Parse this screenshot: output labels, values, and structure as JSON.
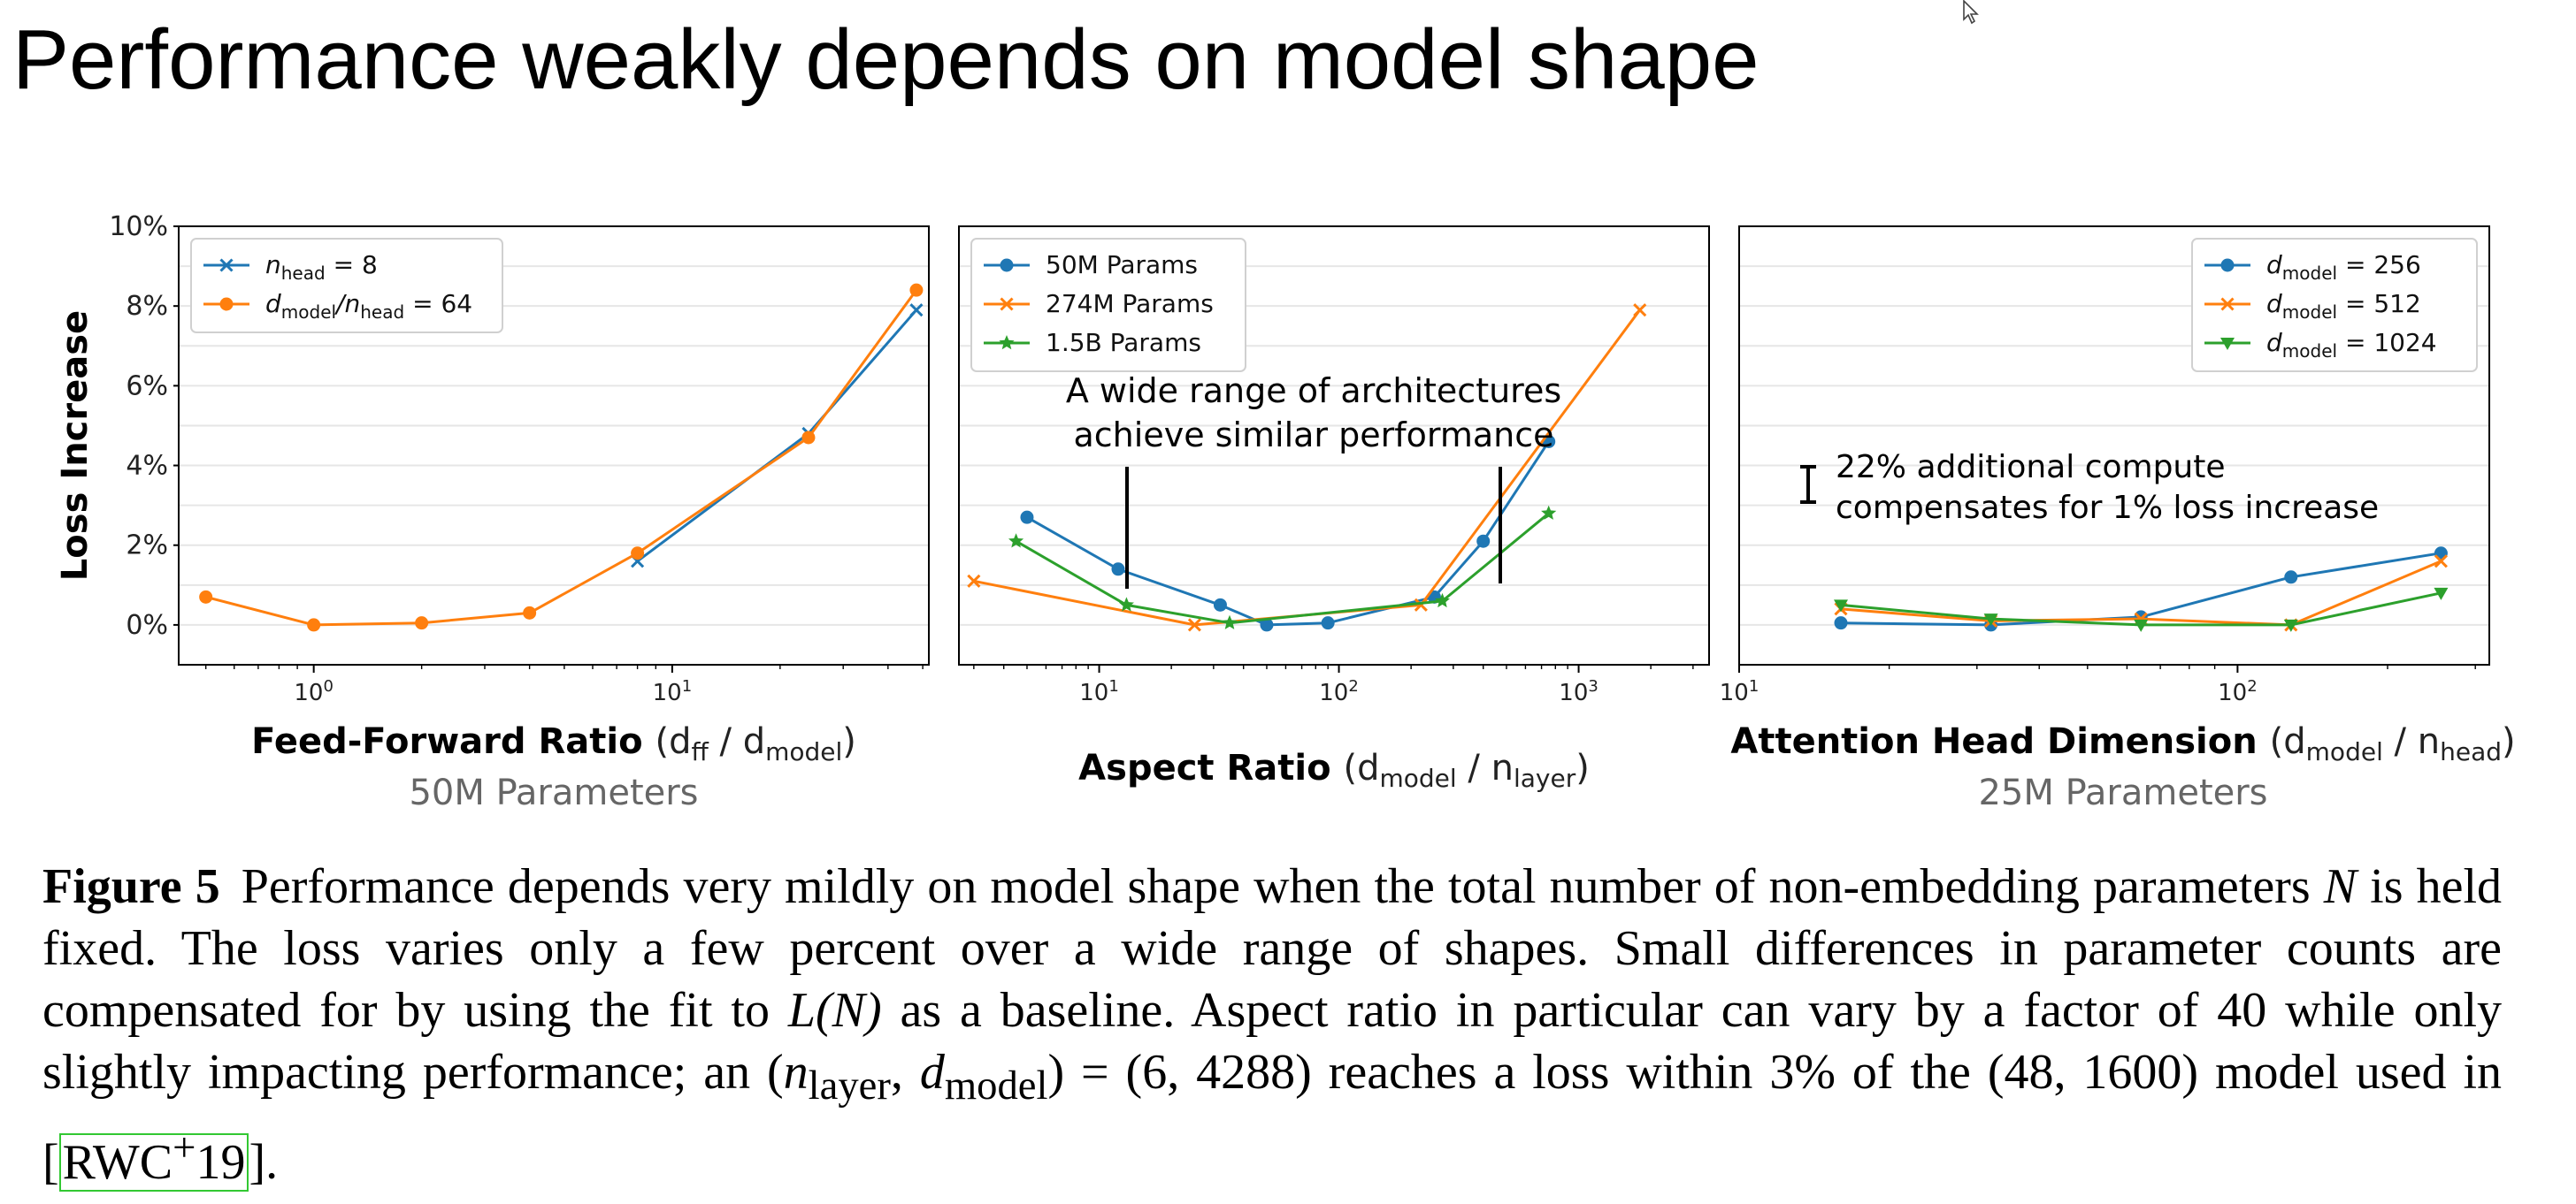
{
  "slide": {
    "title": "Performance weakly depends on model shape"
  },
  "colors": {
    "blue": "#1f77b4",
    "orange": "#ff7f0e",
    "green": "#2ca02c",
    "grid": "#e6e6e6",
    "axis_label_gray": "#666666"
  },
  "icons": {
    "cursor": "mouse-pointer-icon"
  },
  "chart_data": [
    {
      "type": "line",
      "xscale": "log",
      "xlim": [
        0.42,
        52
      ],
      "ylim": [
        -1,
        10
      ],
      "yticks": [
        0,
        2,
        4,
        6,
        8,
        10
      ],
      "ytick_labels": [
        "0%",
        "2%",
        "4%",
        "6%",
        "8%",
        "10%"
      ],
      "xticks": [
        1,
        10
      ],
      "xtick_base": "10",
      "xtick_exps": [
        "0",
        "1"
      ],
      "ylabel": "Loss Increase",
      "xlabel_bold": "Feed-Forward Ratio",
      "xlabel_plain": "(d",
      "xlabel_sub1": "ff",
      "xlabel_mid": " / d",
      "xlabel_sub2": "model",
      "xlabel_end": ")",
      "subtitle": "50M Parameters",
      "legend_position": "upper-left",
      "grid": "horizontal",
      "series": [
        {
          "name_base": "n",
          "name_sub": "head",
          "name_rest": " = 8",
          "color": "#1f77b4",
          "marker": "x",
          "x": [
            8,
            24,
            48
          ],
          "y": [
            1.6,
            4.8,
            7.9
          ]
        },
        {
          "name_base": "d",
          "name_sub": "model",
          "name_mid": "/n",
          "name_sub2": "head",
          "name_rest": " = 64",
          "color": "#ff7f0e",
          "marker": "o",
          "x": [
            0.5,
            1,
            2,
            4,
            8,
            24,
            48
          ],
          "y": [
            0.7,
            0.0,
            0.05,
            0.3,
            1.8,
            4.7,
            8.4
          ]
        }
      ]
    },
    {
      "type": "line",
      "xscale": "log",
      "xlim": [
        2.6,
        3500
      ],
      "ylim": [
        -1,
        10
      ],
      "yticks": [
        0,
        2,
        4,
        6,
        8,
        10
      ],
      "xticks": [
        10,
        100,
        1000
      ],
      "xtick_base": "10",
      "xtick_exps": [
        "1",
        "2",
        "3"
      ],
      "xlabel_bold": "Aspect Ratio",
      "xlabel_plain": "(d",
      "xlabel_sub1": "model",
      "xlabel_mid": " / n",
      "xlabel_sub2": "layer",
      "xlabel_end": ")",
      "annotation": [
        "A wide range of architectures",
        "achieve similar performance"
      ],
      "legend_position": "upper-left",
      "grid": "horizontal",
      "series": [
        {
          "name": "50M Params",
          "color": "#1f77b4",
          "marker": "o",
          "x": [
            5,
            12,
            32,
            50,
            90,
            250,
            400,
            750
          ],
          "y": [
            2.7,
            1.4,
            0.5,
            0.0,
            0.05,
            0.7,
            2.1,
            4.6
          ]
        },
        {
          "name": "274M Params",
          "color": "#ff7f0e",
          "marker": "x",
          "x": [
            3,
            25,
            220,
            1800
          ],
          "y": [
            1.1,
            0.0,
            0.5,
            7.9
          ]
        },
        {
          "name": "1.5B Params",
          "color": "#2ca02c",
          "marker": "*",
          "x": [
            4.5,
            13,
            35,
            270,
            750
          ],
          "y": [
            2.1,
            0.5,
            0.05,
            0.6,
            2.8
          ]
        }
      ]
    },
    {
      "type": "line",
      "xscale": "log",
      "xlim": [
        10,
        320
      ],
      "ylim": [
        -1,
        10
      ],
      "yticks": [
        0,
        2,
        4,
        6,
        8,
        10
      ],
      "xticks": [
        10,
        100
      ],
      "xtick_base": "10",
      "xtick_exps": [
        "1",
        "2"
      ],
      "xlabel_bold": "Attention Head Dimension",
      "xlabel_plain": "(d",
      "xlabel_sub1": "model",
      "xlabel_mid": " / n",
      "xlabel_sub2": "head",
      "xlabel_end": ")",
      "subtitle": "25M Parameters",
      "annotation": [
        "22% additional compute",
        "compensates for 1% loss increase"
      ],
      "legend_position": "upper-right",
      "grid": "horizontal",
      "series": [
        {
          "name_base": "d",
          "name_sub": "model",
          "name_rest": " = 256",
          "color": "#1f77b4",
          "marker": "o",
          "x": [
            16,
            32,
            64,
            128,
            256
          ],
          "y": [
            0.05,
            0.0,
            0.2,
            1.2,
            1.8
          ]
        },
        {
          "name_base": "d",
          "name_sub": "model",
          "name_rest": " = 512",
          "color": "#ff7f0e",
          "marker": "x",
          "x": [
            16,
            32,
            64,
            128,
            256
          ],
          "y": [
            0.4,
            0.1,
            0.15,
            0.0,
            1.6
          ]
        },
        {
          "name_base": "d",
          "name_sub": "model",
          "name_rest": " = 1024",
          "color": "#2ca02c",
          "marker": "v",
          "x": [
            16,
            32,
            64,
            128,
            256
          ],
          "y": [
            0.5,
            0.15,
            0.0,
            0.0,
            0.8
          ]
        }
      ]
    }
  ],
  "caption": {
    "label": "Figure 5",
    "part1": "Performance depends very mildly on model shape when the total number of non-embedding parameters ",
    "N": "N",
    "part2": " is held fixed. The loss varies only a few percent over a wide range of shapes. Small differences in parameter counts are compensated for by using the fit to ",
    "LN": "L(N)",
    "part3": " as a baseline. Aspect ratio in particular can vary by a factor of 40 while only slightly impacting performance; an (",
    "n": "n",
    "n_sub": "layer",
    "comma": ", ",
    "d": "d",
    "d_sub": "model",
    "part4": ") = (6, 4288) reaches a loss within 3% of the (48, 1600) model used in ",
    "cite": "RWC",
    "cite_sup": "+",
    "cite_year": "19",
    "end": "]."
  }
}
